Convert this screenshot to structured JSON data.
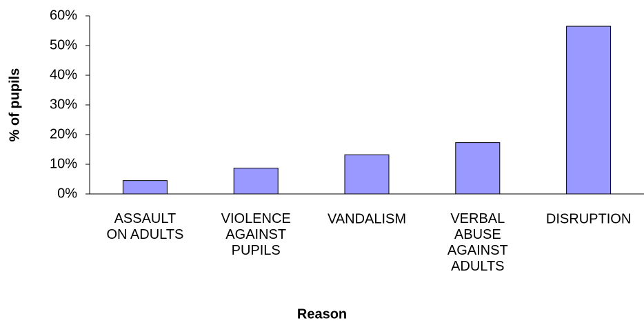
{
  "chart_data": {
    "type": "bar",
    "x_label": "Reason",
    "y_label": "% of pupils",
    "categories": [
      "ASSAULT\nON ADULTS",
      "VIOLENCE\nAGAINST\nPUPILS",
      "VANDALISM",
      "VERBAL\nABUSE\nAGAINST\nADULTS",
      "DISRUPTION"
    ],
    "values": [
      4.5,
      8.7,
      13.2,
      17.3,
      56.5
    ],
    "color": "#9999ff",
    "ylim": [
      0,
      60
    ],
    "yticks": [
      {
        "value": 0,
        "label": "0%"
      },
      {
        "value": 10,
        "label": "10%"
      },
      {
        "value": 20,
        "label": "20%"
      },
      {
        "value": 30,
        "label": "30%"
      },
      {
        "value": 40,
        "label": "40%"
      },
      {
        "value": 50,
        "label": "50%"
      },
      {
        "value": 60,
        "label": "60%"
      }
    ],
    "grid": false
  }
}
